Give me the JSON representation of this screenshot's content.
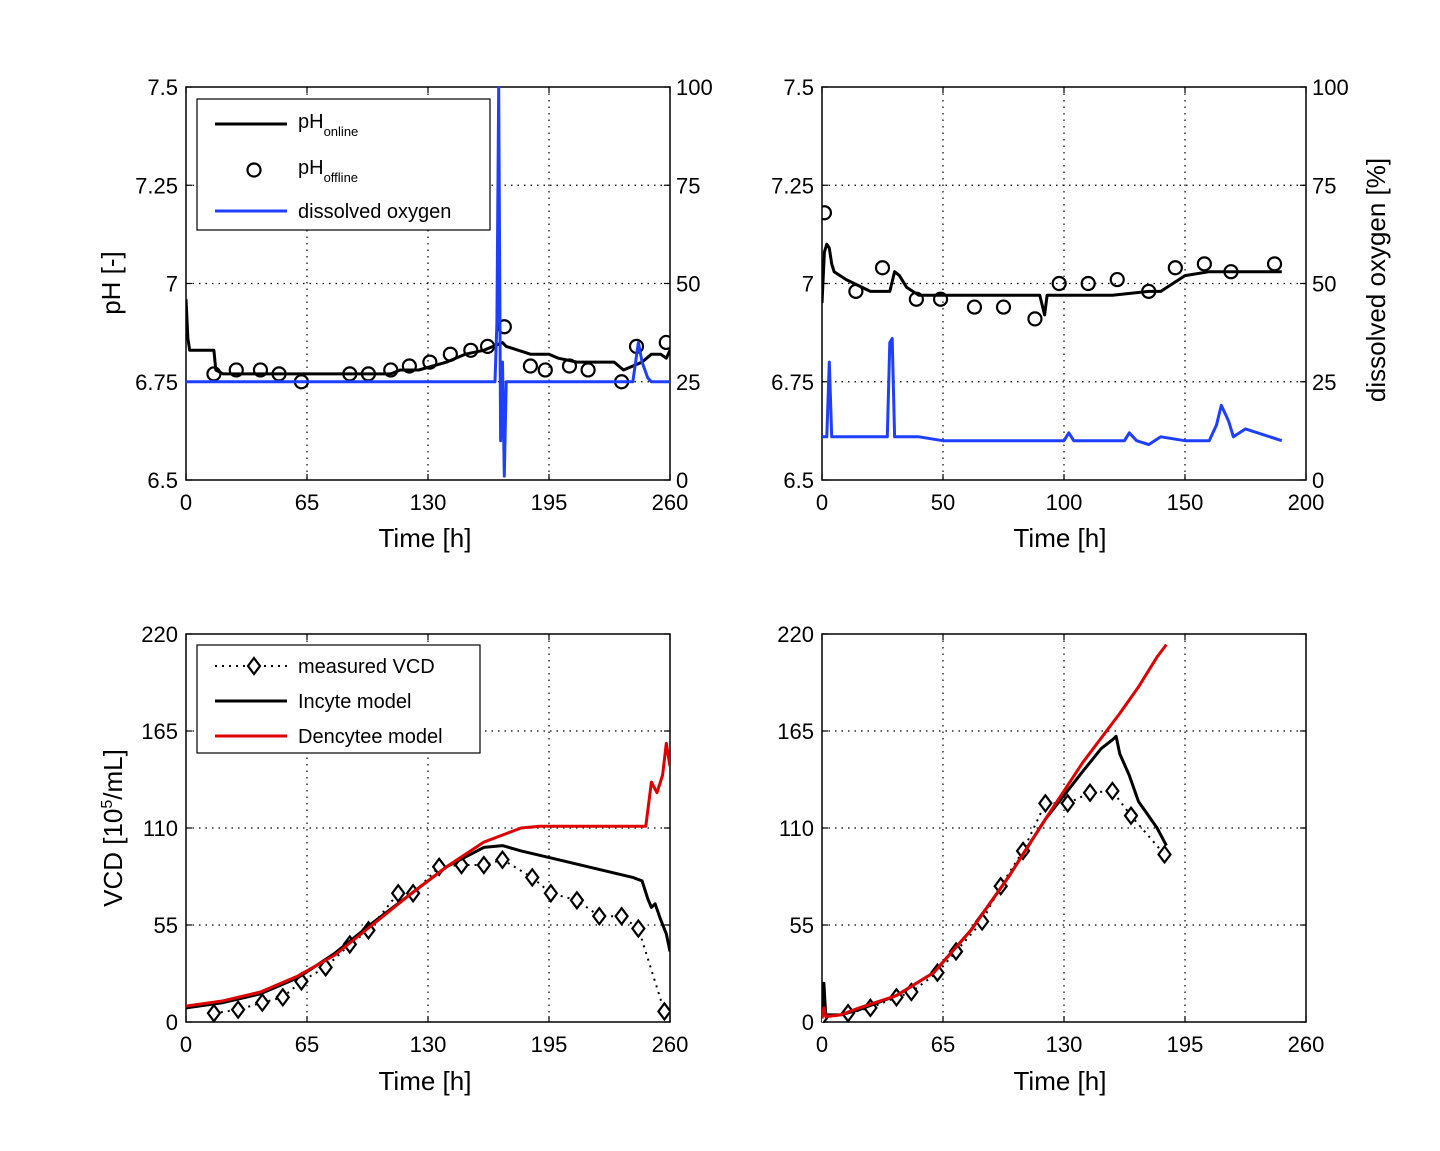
{
  "figure": {
    "panels": [
      {
        "id": "top-left",
        "xlabel": "Time [h]",
        "ylabel": "pH [-]",
        "y2label": "",
        "xticks": [
          "0",
          "65",
          "130",
          "195",
          "260"
        ],
        "yticks": [
          "6.5",
          "6.75",
          "7",
          "7.25",
          "7.5"
        ],
        "y2ticks": [
          "0",
          "25",
          "50",
          "75",
          "100"
        ],
        "legend": [
          {
            "label": "pH",
            "sub": "online"
          },
          {
            "label": "pH",
            "sub": "offline"
          },
          {
            "label": "dissolved oxygen",
            "sub": ""
          }
        ]
      },
      {
        "id": "top-right",
        "xlabel": "Time [h]",
        "ylabel": "",
        "y2label": "dissolved oxygen [%]",
        "xticks": [
          "0",
          "50",
          "100",
          "150",
          "200"
        ],
        "yticks": [
          "6.5",
          "6.75",
          "7",
          "7.25",
          "7.5"
        ],
        "y2ticks": [
          "0",
          "25",
          "50",
          "75",
          "100"
        ],
        "legend": []
      },
      {
        "id": "bottom-left",
        "xlabel": "Time [h]",
        "ylabel": "VCD [10",
        "ylabel_sup": "5",
        "ylabel_tail": "/mL]",
        "xticks": [
          "0",
          "65",
          "130",
          "195",
          "260"
        ],
        "yticks": [
          "0",
          "55",
          "110",
          "165",
          "220"
        ],
        "legend": [
          {
            "label": "measured VCD",
            "sub": ""
          },
          {
            "label": "Incyte model",
            "sub": ""
          },
          {
            "label": "Dencytee model",
            "sub": ""
          }
        ]
      },
      {
        "id": "bottom-right",
        "xlabel": "Time [h]",
        "ylabel": "",
        "xticks": [
          "0",
          "65",
          "130",
          "195",
          "260"
        ],
        "yticks": [
          "0",
          "55",
          "110",
          "165",
          "220"
        ],
        "legend": []
      }
    ]
  },
  "colors": {
    "online_ph": "#000000",
    "offline_ph": "#000000",
    "dissolved_oxygen": "#1f3fff",
    "incyte": "#000000",
    "dencytee": "#e00000",
    "grid": "#000000"
  },
  "chart_data": [
    {
      "type": "line",
      "panel": "top-left",
      "xlim": [
        0,
        260
      ],
      "ylim": [
        6.5,
        7.5
      ],
      "y2lim": [
        0,
        100
      ],
      "grid": true,
      "legend_position": "top-left",
      "series": [
        {
          "name": "pH online",
          "axis": "left",
          "style": "line",
          "x": [
            0,
            1,
            2,
            3,
            15,
            16,
            20,
            40,
            60,
            80,
            100,
            110,
            115,
            125,
            140,
            150,
            160,
            165,
            170,
            172,
            185,
            195,
            200,
            210,
            220,
            230,
            235,
            245,
            250,
            255,
            258,
            260
          ],
          "y": [
            6.96,
            6.86,
            6.83,
            6.83,
            6.83,
            6.78,
            6.77,
            6.77,
            6.77,
            6.77,
            6.77,
            6.77,
            6.78,
            6.78,
            6.8,
            6.82,
            6.83,
            6.84,
            6.85,
            6.84,
            6.82,
            6.82,
            6.81,
            6.8,
            6.8,
            6.8,
            6.78,
            6.8,
            6.82,
            6.82,
            6.81,
            6.83
          ]
        },
        {
          "name": "pH offline",
          "axis": "left",
          "style": "markers",
          "x": [
            15,
            27,
            40,
            50,
            62,
            88,
            98,
            110,
            120,
            131,
            142,
            153,
            162,
            171,
            185,
            193,
            206,
            216,
            234,
            242,
            258
          ],
          "y": [
            6.77,
            6.78,
            6.78,
            6.77,
            6.75,
            6.77,
            6.77,
            6.78,
            6.79,
            6.8,
            6.82,
            6.83,
            6.84,
            6.89,
            6.79,
            6.78,
            6.79,
            6.78,
            6.75,
            6.84,
            6.85
          ]
        },
        {
          "name": "dissolved oxygen",
          "axis": "right",
          "style": "line",
          "x": [
            0,
            20,
            60,
            100,
            140,
            160,
            166,
            167,
            168,
            169,
            170,
            171,
            172,
            174,
            180,
            200,
            230,
            240,
            243,
            245,
            248,
            250,
            260
          ],
          "y": [
            25,
            25,
            25,
            25,
            25,
            25,
            25,
            40,
            100,
            10,
            30,
            1,
            25,
            25,
            25,
            25,
            25,
            25,
            35,
            30,
            26,
            25,
            25
          ]
        }
      ]
    },
    {
      "type": "line",
      "panel": "top-right",
      "xlim": [
        0,
        200
      ],
      "ylim": [
        6.5,
        7.5
      ],
      "y2lim": [
        0,
        100
      ],
      "grid": true,
      "series": [
        {
          "name": "pH online",
          "axis": "left",
          "style": "line",
          "x": [
            0,
            1,
            2,
            3,
            4,
            5,
            10,
            20,
            28,
            30,
            32,
            35,
            40,
            50,
            60,
            70,
            80,
            90,
            92,
            93,
            100,
            120,
            135,
            140,
            145,
            150,
            160,
            170,
            180,
            190
          ],
          "y": [
            6.95,
            7.08,
            7.1,
            7.09,
            7.05,
            7.03,
            7.01,
            6.98,
            6.98,
            7.03,
            7.02,
            6.99,
            6.97,
            6.97,
            6.97,
            6.97,
            6.97,
            6.97,
            6.92,
            6.97,
            6.97,
            6.97,
            6.98,
            6.98,
            7.0,
            7.02,
            7.03,
            7.03,
            7.03,
            7.03
          ]
        },
        {
          "name": "pH offline",
          "axis": "left",
          "style": "markers",
          "x": [
            1,
            14,
            25,
            39,
            49,
            63,
            75,
            88,
            98,
            110,
            122,
            135,
            146,
            158,
            169,
            187
          ],
          "y": [
            7.18,
            6.98,
            7.04,
            6.96,
            6.96,
            6.94,
            6.94,
            6.91,
            7.0,
            7.0,
            7.01,
            6.98,
            7.04,
            7.05,
            7.03,
            7.05
          ]
        },
        {
          "name": "dissolved oxygen",
          "axis": "right",
          "style": "line",
          "x": [
            0,
            2,
            3,
            4,
            5,
            10,
            20,
            27,
            28,
            29,
            30,
            32,
            40,
            50,
            60,
            70,
            80,
            100,
            102,
            104,
            120,
            125,
            127,
            130,
            135,
            140,
            150,
            160,
            163,
            165,
            168,
            170,
            175,
            190
          ],
          "y": [
            11,
            11,
            30,
            11,
            11,
            11,
            11,
            11,
            35,
            36,
            11,
            11,
            11,
            10,
            10,
            10,
            10,
            10,
            12,
            10,
            10,
            10,
            12,
            10,
            9,
            11,
            10,
            10,
            14,
            19,
            15,
            11,
            13,
            10
          ]
        }
      ]
    },
    {
      "type": "line",
      "panel": "bottom-left",
      "xlim": [
        0,
        260
      ],
      "ylim": [
        0,
        220
      ],
      "grid": true,
      "legend_position": "top-left",
      "series": [
        {
          "name": "measured VCD",
          "style": "dotted-markers",
          "x": [
            15,
            28,
            41,
            52,
            62,
            75,
            88,
            98,
            114,
            122,
            136,
            148,
            160,
            170,
            186,
            196,
            210,
            222,
            234,
            243,
            257
          ],
          "y": [
            5,
            7,
            11,
            14,
            23,
            31,
            44,
            52,
            73,
            73,
            88,
            89,
            89,
            92,
            82,
            73,
            69,
            60,
            60,
            53,
            6
          ]
        },
        {
          "name": "Incyte model",
          "x": [
            0,
            20,
            40,
            60,
            80,
            100,
            120,
            140,
            160,
            170,
            180,
            200,
            220,
            240,
            245,
            248,
            250,
            252,
            255,
            258,
            260
          ],
          "y": [
            8,
            11,
            16,
            25,
            39,
            56,
            72,
            88,
            99,
            100,
            97,
            92,
            87,
            82,
            80,
            70,
            65,
            67,
            58,
            50,
            40
          ]
        },
        {
          "name": "Dencytee model",
          "x": [
            0,
            20,
            40,
            60,
            80,
            100,
            120,
            140,
            160,
            180,
            190,
            200,
            220,
            240,
            247,
            250,
            253,
            256,
            258,
            260
          ],
          "y": [
            9,
            12,
            17,
            26,
            38,
            55,
            72,
            88,
            102,
            110,
            111,
            111,
            111,
            111,
            111,
            136,
            130,
            140,
            158,
            145
          ]
        }
      ]
    },
    {
      "type": "line",
      "panel": "bottom-right",
      "xlim": [
        0,
        260
      ],
      "ylim": [
        0,
        220
      ],
      "grid": true,
      "series": [
        {
          "name": "measured VCD",
          "style": "dotted-markers",
          "x": [
            0,
            14,
            26,
            40,
            48,
            62,
            72,
            86,
            96,
            108,
            120,
            132,
            144,
            156,
            166,
            184
          ],
          "y": [
            3,
            5,
            8,
            14,
            17,
            28,
            40,
            57,
            77,
            97,
            124,
            124,
            130,
            131,
            117,
            95
          ]
        },
        {
          "name": "Incyte model",
          "x": [
            0,
            1,
            2,
            10,
            20,
            40,
            60,
            80,
            100,
            120,
            140,
            150,
            156,
            158,
            160,
            165,
            170,
            180,
            185
          ],
          "y": [
            2,
            22,
            4,
            4,
            7,
            15,
            28,
            52,
            82,
            115,
            142,
            155,
            160,
            162,
            152,
            140,
            125,
            110,
            100
          ]
        },
        {
          "name": "Dencytee model",
          "x": [
            0,
            1,
            2,
            10,
            20,
            40,
            60,
            80,
            100,
            120,
            140,
            160,
            170,
            180,
            185
          ],
          "y": [
            2,
            8,
            3,
            4,
            8,
            15,
            28,
            52,
            82,
            115,
            147,
            175,
            190,
            207,
            214
          ]
        }
      ]
    }
  ]
}
